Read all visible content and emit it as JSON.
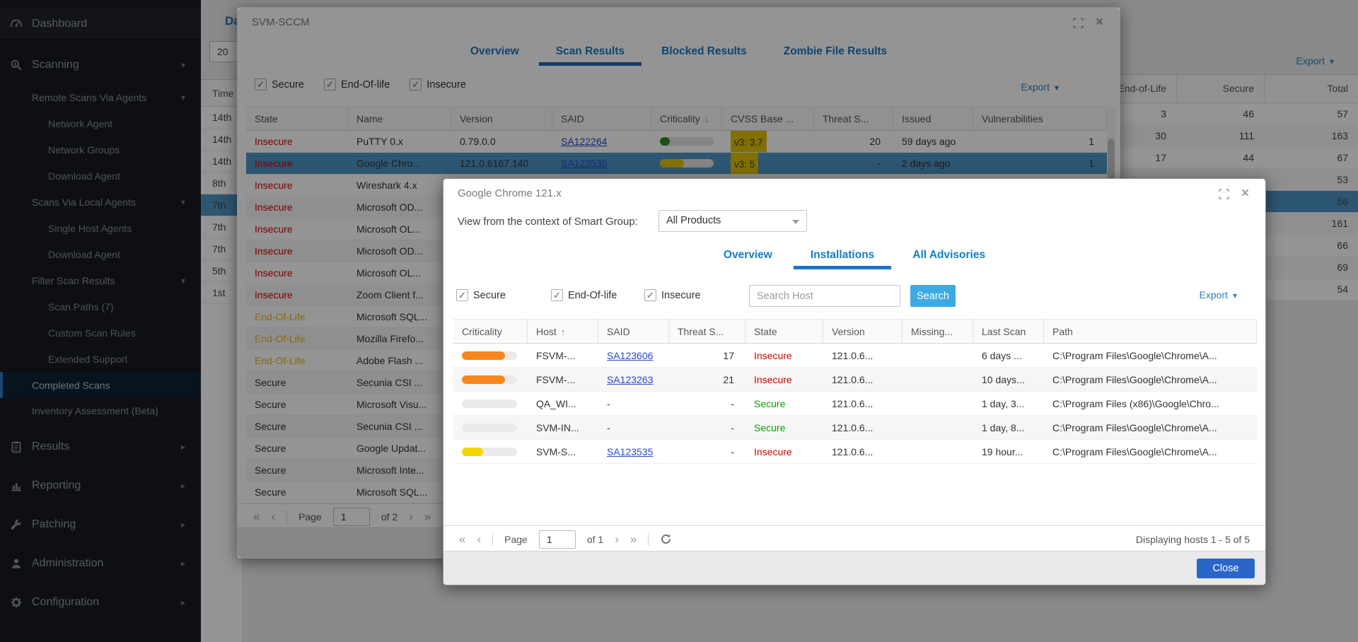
{
  "colors": {
    "accent_blue": "#1e88c7",
    "link_blue": "#2948cf",
    "insecure_red": "#d40000",
    "secure_green": "#00a300",
    "eol_yellow": "#e8b423",
    "selection_blue": "#4e94c4",
    "search_button_blue": "#3eaae4",
    "close_button_blue": "#2a65c8",
    "criticality_orange": "#f8861d",
    "criticality_yellow": "#f0cb00",
    "criticality_green": "#2e8b2e",
    "cvss_badge_yellow": "#dfc10a"
  },
  "sidebar": {
    "items": [
      {
        "label": "Dashboard",
        "icon": "dashboard",
        "classes": "l0 first",
        "arrow": ""
      },
      {
        "label": "Scanning",
        "icon": "scanning",
        "classes": "l0",
        "arrow": "down"
      },
      {
        "label": "Remote Scans Via Agents",
        "icon": "",
        "classes": "l1",
        "arrow": "down"
      },
      {
        "label": "Network Agent",
        "icon": "",
        "classes": "l2",
        "arrow": ""
      },
      {
        "label": "Network Groups",
        "icon": "",
        "classes": "l2",
        "arrow": ""
      },
      {
        "label": "Download Agent",
        "icon": "",
        "classes": "l2",
        "arrow": ""
      },
      {
        "label": "Scans Via Local Agents",
        "icon": "",
        "classes": "l1",
        "arrow": "down"
      },
      {
        "label": "Single Host Agents",
        "icon": "",
        "classes": "l2",
        "arrow": ""
      },
      {
        "label": "Download Agent",
        "icon": "",
        "classes": "l2",
        "arrow": ""
      },
      {
        "label": "Filter Scan Results",
        "icon": "",
        "classes": "l1",
        "arrow": "down"
      },
      {
        "label": "Scan Paths (7)",
        "icon": "",
        "classes": "l2",
        "arrow": ""
      },
      {
        "label": "Custom Scan Rules",
        "icon": "",
        "classes": "l2",
        "arrow": ""
      },
      {
        "label": "Extended Support",
        "icon": "",
        "classes": "l2",
        "arrow": ""
      },
      {
        "label": "Completed Scans",
        "icon": "",
        "classes": "l1 selected",
        "arrow": ""
      },
      {
        "label": "Inventory Assessment (Beta)",
        "icon": "",
        "classes": "l1 divider-after",
        "arrow": ""
      },
      {
        "label": "Results",
        "icon": "results",
        "classes": "l0",
        "arrow": "right"
      },
      {
        "label": "Reporting",
        "icon": "reporting",
        "classes": "l0",
        "arrow": "right"
      },
      {
        "label": "Patching",
        "icon": "patching",
        "classes": "l0",
        "arrow": "right"
      },
      {
        "label": "Administration",
        "icon": "administration",
        "classes": "l0",
        "arrow": "right"
      },
      {
        "label": "Configuration",
        "icon": "configuration",
        "classes": "l0",
        "arrow": "right"
      }
    ]
  },
  "background": {
    "page_title": "Da",
    "date_input": "20",
    "export_label": "Export",
    "time_column": {
      "header": "Time",
      "rows": [
        {
          "label": "14th",
          "classes": ""
        },
        {
          "label": "14th",
          "classes": ""
        },
        {
          "label": "14th",
          "classes": ""
        },
        {
          "label": "8th",
          "classes": ""
        },
        {
          "label": "7th",
          "classes": "selected"
        },
        {
          "label": "7th",
          "classes": ""
        },
        {
          "label": "7th",
          "classes": ""
        },
        {
          "label": "5th",
          "classes": ""
        },
        {
          "label": "1st",
          "classes": ""
        }
      ]
    },
    "summary_table": {
      "columns": [
        {
          "label": "End-of-Life"
        },
        {
          "label": "Secure"
        },
        {
          "label": "Total"
        }
      ],
      "rows": [
        {
          "eol": "3",
          "secure": "46",
          "total": "57",
          "classes": ""
        },
        {
          "eol": "30",
          "secure": "111",
          "total": "163",
          "classes": ""
        },
        {
          "eol": "17",
          "secure": "44",
          "total": "67",
          "classes": ""
        },
        {
          "eol": "",
          "secure": "",
          "total": "53",
          "classes": ""
        },
        {
          "eol": "",
          "secure": "",
          "total": "56",
          "classes": "selected"
        },
        {
          "eol": "",
          "secure": "",
          "total": "161",
          "classes": ""
        },
        {
          "eol": "",
          "secure": "",
          "total": "66",
          "classes": ""
        },
        {
          "eol": "",
          "secure": "",
          "total": "69",
          "classes": ""
        },
        {
          "eol": "",
          "secure": "",
          "total": "54",
          "classes": ""
        }
      ]
    }
  },
  "scan_modal": {
    "title": "SVM-SCCM",
    "tabs": [
      {
        "label": "Overview",
        "classes": ""
      },
      {
        "label": "Scan Results",
        "classes": "active"
      },
      {
        "label": "Blocked Results",
        "classes": ""
      },
      {
        "label": "Zombie File Results",
        "classes": ""
      }
    ],
    "filters": [
      {
        "label": "Secure"
      },
      {
        "label": "End-Of-life"
      },
      {
        "label": "Insecure"
      }
    ],
    "export_label": "Export",
    "columns": [
      {
        "label": "State",
        "sort": ""
      },
      {
        "label": "Name",
        "sort": ""
      },
      {
        "label": "Version",
        "sort": ""
      },
      {
        "label": "SAID",
        "sort": ""
      },
      {
        "label": "Criticality",
        "sort": "desc"
      },
      {
        "label": "CVSS Base ...",
        "sort": ""
      },
      {
        "label": "Threat S...",
        "sort": ""
      },
      {
        "label": "Issued",
        "sort": ""
      },
      {
        "label": "Vulnerabilities",
        "sort": ""
      }
    ],
    "rows": [
      {
        "state": "Insecure",
        "state_class": "insecure",
        "name": "PuTTY 0.x",
        "version": "0.79.0.0",
        "said": "SA122264",
        "said_class": "link",
        "criticality": {
          "pct": "18%",
          "color": "#2e8b2e",
          "track": "#e4e4e4"
        },
        "cvss": "v3: 3.7",
        "threat": "20",
        "issued": "59 days ago",
        "vulns": "1",
        "row_class": ""
      },
      {
        "state": "Insecure",
        "state_class": "insecure",
        "name": "Google Chro...",
        "version": "121.0.6167.140",
        "said": "SA123535",
        "said_class": "link",
        "criticality": {
          "pct": "45%",
          "color": "#e3c400",
          "track": "#e4e4e4"
        },
        "cvss": "v3: 5",
        "threat": "-",
        "issued": "2 days ago",
        "vulns": "1",
        "row_class": "selected"
      },
      {
        "state": "Insecure",
        "state_class": "insecure",
        "name": "Wireshark 4.x",
        "version": "",
        "said": "",
        "said_class": "",
        "criticality": {
          "pct": "0%",
          "color": "transparent",
          "track": "transparent"
        },
        "cvss": "",
        "threat": "",
        "issued": "",
        "vulns": "",
        "row_class": ""
      },
      {
        "state": "Insecure",
        "state_class": "insecure",
        "name": "Microsoft OD...",
        "version": "",
        "said": "",
        "said_class": "",
        "criticality": {
          "pct": "0%",
          "color": "transparent",
          "track": "transparent"
        },
        "cvss": "",
        "threat": "",
        "issued": "",
        "vulns": "",
        "row_class": ""
      },
      {
        "state": "Insecure",
        "state_class": "insecure",
        "name": "Microsoft OL...",
        "version": "",
        "said": "",
        "said_class": "",
        "criticality": {
          "pct": "0%",
          "color": "transparent",
          "track": "transparent"
        },
        "cvss": "",
        "threat": "",
        "issued": "",
        "vulns": "",
        "row_class": ""
      },
      {
        "state": "Insecure",
        "state_class": "insecure",
        "name": "Microsoft OD...",
        "version": "",
        "said": "",
        "said_class": "",
        "criticality": {
          "pct": "0%",
          "color": "transparent",
          "track": "transparent"
        },
        "cvss": "",
        "threat": "",
        "issued": "",
        "vulns": "",
        "row_class": ""
      },
      {
        "state": "Insecure",
        "state_class": "insecure",
        "name": "Microsoft OL...",
        "version": "",
        "said": "",
        "said_class": "",
        "criticality": {
          "pct": "0%",
          "color": "transparent",
          "track": "transparent"
        },
        "cvss": "",
        "threat": "",
        "issued": "",
        "vulns": "",
        "row_class": ""
      },
      {
        "state": "Insecure",
        "state_class": "insecure",
        "name": "Zoom Client f...",
        "version": "",
        "said": "",
        "said_class": "",
        "criticality": {
          "pct": "0%",
          "color": "transparent",
          "track": "transparent"
        },
        "cvss": "",
        "threat": "",
        "issued": "",
        "vulns": "",
        "row_class": ""
      },
      {
        "state": "End-Of-Life",
        "state_class": "eol",
        "name": "Microsoft SQL...",
        "version": "",
        "said": "",
        "said_class": "",
        "criticality": {
          "pct": "0%",
          "color": "transparent",
          "track": "transparent"
        },
        "cvss": "",
        "threat": "",
        "issued": "",
        "vulns": "",
        "row_class": ""
      },
      {
        "state": "End-Of-Life",
        "state_class": "eol",
        "name": "Mozilla Firefo...",
        "version": "",
        "said": "",
        "said_class": "",
        "criticality": {
          "pct": "0%",
          "color": "transparent",
          "track": "transparent"
        },
        "cvss": "",
        "threat": "",
        "issued": "",
        "vulns": "",
        "row_class": ""
      },
      {
        "state": "End-Of-Life",
        "state_class": "eol",
        "name": "Adobe Flash ...",
        "version": "",
        "said": "",
        "said_class": "",
        "criticality": {
          "pct": "0%",
          "color": "transparent",
          "track": "transparent"
        },
        "cvss": "",
        "threat": "",
        "issued": "",
        "vulns": "",
        "row_class": ""
      },
      {
        "state": "Secure",
        "state_class": "",
        "name": "Secunia CSI ...",
        "version": "",
        "said": "",
        "said_class": "",
        "criticality": {
          "pct": "0%",
          "color": "transparent",
          "track": "transparent"
        },
        "cvss": "",
        "threat": "",
        "issued": "",
        "vulns": "",
        "row_class": ""
      },
      {
        "state": "Secure",
        "state_class": "",
        "name": "Microsoft Visu...",
        "version": "",
        "said": "",
        "said_class": "",
        "criticality": {
          "pct": "0%",
          "color": "transparent",
          "track": "transparent"
        },
        "cvss": "",
        "threat": "",
        "issued": "",
        "vulns": "",
        "row_class": ""
      },
      {
        "state": "Secure",
        "state_class": "",
        "name": "Secunia CSI ...",
        "version": "",
        "said": "",
        "said_class": "",
        "criticality": {
          "pct": "0%",
          "color": "transparent",
          "track": "transparent"
        },
        "cvss": "",
        "threat": "",
        "issued": "",
        "vulns": "",
        "row_class": ""
      },
      {
        "state": "Secure",
        "state_class": "",
        "name": "Google Updat...",
        "version": "",
        "said": "",
        "said_class": "",
        "criticality": {
          "pct": "0%",
          "color": "transparent",
          "track": "transparent"
        },
        "cvss": "",
        "threat": "",
        "issued": "",
        "vulns": "",
        "row_class": ""
      },
      {
        "state": "Secure",
        "state_class": "",
        "name": "Microsoft Inte...",
        "version": "",
        "said": "",
        "said_class": "",
        "criticality": {
          "pct": "0%",
          "color": "transparent",
          "track": "transparent"
        },
        "cvss": "",
        "threat": "",
        "issued": "",
        "vulns": "",
        "row_class": ""
      },
      {
        "state": "Secure",
        "state_class": "",
        "name": "Microsoft SQL...",
        "version": "",
        "said": "",
        "said_class": "",
        "criticality": {
          "pct": "0%",
          "color": "transparent",
          "track": "transparent"
        },
        "cvss": "",
        "threat": "",
        "issued": "",
        "vulns": "",
        "row_class": ""
      }
    ],
    "pager": {
      "page_label": "Page",
      "page_value": "1",
      "of_label": "of 2"
    }
  },
  "product_modal": {
    "title": "Google Chrome 121.x",
    "smart_group_label": "View from the context of Smart Group:",
    "smart_group_value": "All Products",
    "tabs": [
      {
        "label": "Overview",
        "classes": ""
      },
      {
        "label": "Installations",
        "classes": "active"
      },
      {
        "label": "All Advisories",
        "classes": ""
      }
    ],
    "filters": [
      {
        "label": "Secure"
      },
      {
        "label": "End-Of-life"
      },
      {
        "label": "Insecure"
      }
    ],
    "search_placeholder": "Search Host",
    "search_button": "Search",
    "export_label": "Export",
    "columns": [
      {
        "label": "Criticality",
        "sort": ""
      },
      {
        "label": "Host",
        "sort": "asc"
      },
      {
        "label": "SAID",
        "sort": ""
      },
      {
        "label": "Threat S...",
        "sort": ""
      },
      {
        "label": "State",
        "sort": ""
      },
      {
        "label": "Version",
        "sort": ""
      },
      {
        "label": "Missing...",
        "sort": ""
      },
      {
        "label": "Last Scan",
        "sort": ""
      },
      {
        "label": "Path",
        "sort": ""
      }
    ],
    "rows": [
      {
        "criticality": {
          "pct": "78%",
          "color": "#f8861d",
          "track": "#eaeaea"
        },
        "host": "FSVM-...",
        "said": "SA123606",
        "said_class": "link",
        "threat": "17",
        "state": "Insecure",
        "state_class": "insecure",
        "version": "121.0.6...",
        "missing": "",
        "last_scan": "6 days ...",
        "path": "C:\\Program Files\\Google\\Chrome\\A..."
      },
      {
        "criticality": {
          "pct": "78%",
          "color": "#f8861d",
          "track": "#eaeaea"
        },
        "host": "FSVM-...",
        "said": "SA123263",
        "said_class": "link",
        "threat": "21",
        "state": "Insecure",
        "state_class": "insecure",
        "version": "121.0.6...",
        "missing": "",
        "last_scan": "10 days...",
        "path": "C:\\Program Files\\Google\\Chrome\\A..."
      },
      {
        "criticality": {
          "pct": "0%",
          "color": "transparent",
          "track": "#eaeaea"
        },
        "host": "QA_WI...",
        "said": "-",
        "said_class": "",
        "threat": "-",
        "state": "Secure",
        "state_class": "secure",
        "version": "121.0.6...",
        "missing": "",
        "last_scan": "1 day, 3...",
        "path": "C:\\Program Files (x86)\\Google\\Chro..."
      },
      {
        "criticality": {
          "pct": "0%",
          "color": "transparent",
          "track": "#eaeaea"
        },
        "host": "SVM-IN...",
        "said": "-",
        "said_class": "",
        "threat": "-",
        "state": "Secure",
        "state_class": "secure",
        "version": "121.0.6...",
        "missing": "",
        "last_scan": "1 day, 8...",
        "path": "C:\\Program Files\\Google\\Chrome\\A..."
      },
      {
        "criticality": {
          "pct": "38%",
          "color": "#f5d400",
          "track": "#eaeaea"
        },
        "host": "SVM-S...",
        "said": "SA123535",
        "said_class": "link",
        "threat": "-",
        "state": "Insecure",
        "state_class": "insecure",
        "version": "121.0.6...",
        "missing": "",
        "last_scan": "19 hour...",
        "path": "C:\\Program Files\\Google\\Chrome\\A..."
      }
    ],
    "pager": {
      "page_label": "Page",
      "page_value": "1",
      "of_label": "of 1",
      "status": "Displaying hosts 1 - 5 of 5"
    },
    "close_button": "Close"
  }
}
